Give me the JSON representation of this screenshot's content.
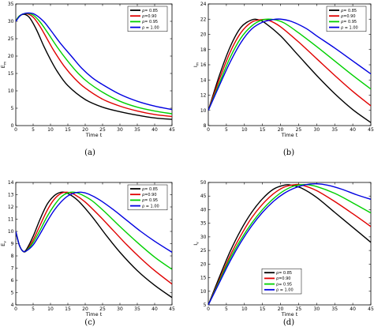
{
  "chart_data": [
    {
      "type": "line",
      "panel": "a",
      "caption": "(a)",
      "xlabel": "Time t",
      "ylabel": "E_m",
      "xlim": [
        0,
        45
      ],
      "ylim": [
        0,
        35
      ],
      "xticks": [
        0,
        5,
        10,
        15,
        20,
        25,
        30,
        35,
        40,
        45
      ],
      "yticks": [
        0,
        5,
        10,
        15,
        20,
        25,
        30,
        35
      ],
      "legend_position": "top-right",
      "series": [
        {
          "name": "ρ= 0.85",
          "color": "#000000",
          "x": [
            0,
            1,
            2.5,
            4,
            6,
            8,
            10,
            12,
            15,
            20,
            25,
            30,
            35,
            40,
            45
          ],
          "y": [
            30,
            31.5,
            32,
            31,
            27.5,
            23,
            19,
            15.5,
            11.5,
            7.5,
            5.3,
            4,
            3,
            2.2,
            1.8
          ]
        },
        {
          "name": "ρ=0.90",
          "color": "#e00000",
          "x": [
            0,
            1,
            3,
            5,
            7,
            9,
            11,
            14,
            17,
            20,
            25,
            30,
            35,
            40,
            45
          ],
          "y": [
            30,
            31.5,
            32.2,
            31.2,
            28.5,
            25,
            21.5,
            17,
            13.5,
            10.8,
            7.6,
            5.6,
            4.2,
            3.2,
            2.6
          ]
        },
        {
          "name": "ρ= 0.95",
          "color": "#00d000",
          "x": [
            0,
            1,
            3,
            5,
            7,
            9,
            12,
            15,
            18,
            21,
            25,
            30,
            35,
            40,
            45
          ],
          "y": [
            30,
            31.5,
            32.3,
            31.8,
            29.8,
            27,
            22.5,
            18.5,
            15,
            12.3,
            9.6,
            7,
            5.3,
            4.2,
            3.4
          ]
        },
        {
          "name": "ρ = 1.00",
          "color": "#0000e0",
          "x": [
            0,
            1.5,
            3.5,
            5.5,
            8,
            10,
            13,
            16,
            19,
            22,
            25,
            30,
            35,
            40,
            45
          ],
          "y": [
            30,
            31.8,
            32.4,
            32,
            30,
            27.5,
            23.5,
            20,
            16.5,
            13.8,
            11.8,
            9,
            7,
            5.6,
            4.6
          ]
        }
      ]
    },
    {
      "type": "line",
      "panel": "b",
      "caption": "(b)",
      "xlabel": "Time t",
      "ylabel": "I_m",
      "xlim": [
        0,
        45
      ],
      "ylim": [
        8,
        24
      ],
      "xticks": [
        0,
        5,
        10,
        15,
        20,
        25,
        30,
        35,
        40,
        45
      ],
      "yticks": [
        8,
        10,
        12,
        14,
        16,
        18,
        20,
        22,
        24
      ],
      "legend_position": "top-right",
      "series": [
        {
          "name": "ρ= 0.85",
          "color": "#000000",
          "x": [
            0,
            3,
            6,
            9,
            12,
            14,
            16,
            20,
            25,
            30,
            35,
            40,
            45
          ],
          "y": [
            10,
            14.5,
            18.3,
            20.9,
            21.9,
            21.9,
            21.4,
            19.8,
            17.2,
            14.6,
            12.2,
            10.1,
            8.4
          ]
        },
        {
          "name": "ρ=0.90",
          "color": "#e00000",
          "x": [
            0,
            3,
            6,
            9,
            12,
            15,
            17,
            20,
            25,
            30,
            35,
            40,
            45
          ],
          "y": [
            10,
            14,
            17.6,
            20.2,
            21.6,
            21.95,
            21.8,
            21,
            19,
            16.8,
            14.6,
            12.5,
            10.6
          ]
        },
        {
          "name": "ρ= 0.95",
          "color": "#00d000",
          "x": [
            0,
            3,
            6,
            9,
            12,
            15,
            18,
            21,
            25,
            30,
            35,
            40,
            45
          ],
          "y": [
            10,
            13.5,
            16.9,
            19.5,
            21.1,
            21.9,
            21.95,
            21.5,
            20.2,
            18.4,
            16.5,
            14.6,
            12.8
          ]
        },
        {
          "name": "ρ = 1.00",
          "color": "#0000e0",
          "x": [
            0,
            3,
            6,
            9,
            12,
            15,
            18,
            20,
            23,
            27,
            30,
            35,
            40,
            45
          ],
          "y": [
            10,
            13.2,
            16.3,
            18.9,
            20.7,
            21.6,
            21.95,
            22,
            21.7,
            20.8,
            19.8,
            18.2,
            16.5,
            14.8
          ]
        }
      ]
    },
    {
      "type": "line",
      "panel": "c",
      "caption": "(c)",
      "xlabel": "Time t",
      "ylabel": "E_v",
      "xlim": [
        0,
        45
      ],
      "ylim": [
        4,
        14
      ],
      "xticks": [
        0,
        5,
        10,
        15,
        20,
        25,
        30,
        35,
        40,
        45
      ],
      "yticks": [
        4,
        5,
        6,
        7,
        8,
        9,
        10,
        11,
        12,
        13,
        14
      ],
      "legend_position": "top-right",
      "series": [
        {
          "name": "ρ= 0.85",
          "color": "#000000",
          "x": [
            0,
            1,
            2,
            3,
            5,
            7,
            9,
            11,
            13,
            15,
            18,
            22,
            26,
            30,
            35,
            40,
            45
          ],
          "y": [
            10,
            8.9,
            8.4,
            8.5,
            9.6,
            11,
            12.2,
            12.9,
            13.2,
            13.1,
            12.5,
            11.2,
            9.7,
            8.3,
            6.8,
            5.6,
            4.6
          ]
        },
        {
          "name": "ρ=0.90",
          "color": "#e00000",
          "x": [
            0,
            1,
            2,
            3,
            5,
            7,
            9,
            11,
            13,
            15,
            17,
            20,
            24,
            28,
            32,
            36,
            40,
            45
          ],
          "y": [
            10,
            8.9,
            8.4,
            8.4,
            9.3,
            10.5,
            11.7,
            12.6,
            13.1,
            13.2,
            13,
            12.4,
            11.3,
            10.1,
            8.9,
            7.8,
            6.8,
            5.7
          ]
        },
        {
          "name": "ρ= 0.95",
          "color": "#00d000",
          "x": [
            0,
            1,
            2,
            3,
            5,
            7,
            9,
            11,
            13,
            15,
            17,
            19,
            22,
            26,
            30,
            35,
            40,
            45
          ],
          "y": [
            10,
            8.9,
            8.4,
            8.4,
            9.1,
            10.1,
            11.2,
            12.1,
            12.8,
            13.15,
            13.2,
            13,
            12.5,
            11.5,
            10.4,
            9.1,
            7.9,
            6.9
          ]
        },
        {
          "name": "ρ = 1.00",
          "color": "#0000e0",
          "x": [
            0,
            1,
            2,
            3,
            5,
            7,
            9,
            11,
            13,
            15,
            17,
            19,
            21,
            24,
            28,
            32,
            36,
            40,
            45
          ],
          "y": [
            10,
            8.9,
            8.4,
            8.4,
            8.9,
            9.8,
            10.8,
            11.7,
            12.4,
            12.9,
            13.15,
            13.2,
            13.05,
            12.6,
            11.8,
            10.9,
            10,
            9.2,
            8.3
          ]
        }
      ]
    },
    {
      "type": "line",
      "panel": "d",
      "caption": "(d)",
      "xlabel": "Time t",
      "ylabel": "I_v",
      "xlim": [
        0,
        45
      ],
      "ylim": [
        5,
        50
      ],
      "xticks": [
        0,
        5,
        10,
        15,
        20,
        25,
        30,
        35,
        40,
        45
      ],
      "yticks": [
        5,
        10,
        15,
        20,
        25,
        30,
        35,
        40,
        45,
        50
      ],
      "legend_position": "bottom-center",
      "series": [
        {
          "name": "ρ= 0.85",
          "color": "#000000",
          "x": [
            0,
            3,
            6,
            9,
            12,
            15,
            18,
            21,
            23,
            26,
            30,
            35,
            40,
            45
          ],
          "y": [
            5,
            15,
            24.5,
            32.5,
            39,
            44,
            47.5,
            49,
            49,
            47.8,
            44.5,
            39,
            33.5,
            28
          ]
        },
        {
          "name": "ρ=0.90",
          "color": "#e00000",
          "x": [
            0,
            3,
            6,
            9,
            12,
            15,
            18,
            21,
            24,
            26,
            30,
            35,
            40,
            45
          ],
          "y": [
            5,
            14,
            23,
            30.5,
            37,
            42,
            45.8,
            48.3,
            49.2,
            49,
            47,
            43,
            38.5,
            33.8
          ]
        },
        {
          "name": "ρ= 0.95",
          "color": "#00d000",
          "x": [
            0,
            3,
            6,
            9,
            12,
            15,
            18,
            21,
            24,
            27,
            30,
            35,
            40,
            45
          ],
          "y": [
            5,
            13.5,
            22,
            29,
            35,
            40,
            44,
            47,
            48.8,
            49.2,
            48.5,
            46,
            42.5,
            38.8
          ]
        },
        {
          "name": "ρ = 1.00",
          "color": "#0000e0",
          "x": [
            0,
            3,
            6,
            9,
            12,
            15,
            18,
            21,
            24,
            27,
            30,
            33,
            37,
            41,
            45
          ],
          "y": [
            5,
            13,
            21,
            28,
            34,
            39,
            43,
            46,
            48,
            49.2,
            49.5,
            49,
            47.5,
            45.5,
            43.8
          ]
        }
      ]
    }
  ]
}
